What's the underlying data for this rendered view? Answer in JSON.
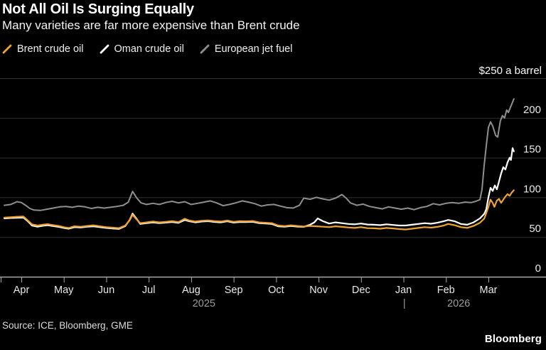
{
  "header": {
    "title": "Not All Oil Is Surging Equally",
    "subtitle": "Many varieties are far more expensive than Brent crude"
  },
  "legend": [
    {
      "label": "Brent crude oil",
      "color": "#eda233"
    },
    {
      "label": "Oman crude oil",
      "color": "#ffffff"
    },
    {
      "label": "European jet fuel",
      "color": "#8f8f8f"
    }
  ],
  "footer": {
    "source": "Source: ICE, Bloomberg, GME",
    "logo": "Bloomberg"
  },
  "chart_data": {
    "type": "line",
    "title": "Not All Oil Is Surging Equally",
    "subtitle": "Many varieties are far more expensive than Brent crude",
    "unit": "$ a barrel",
    "grid": true,
    "legend_position": "top-left",
    "y_axis": {
      "min": 0,
      "max": 250,
      "ticks": [
        0,
        50,
        100,
        150,
        200
      ],
      "grid_values": [
        50,
        100,
        150,
        200,
        250
      ],
      "top_label": "$250 a barrel"
    },
    "x_axis": {
      "unit": "months since Apr 2025 (0=Apr 2025 ... 11=Mar 2026)",
      "months": [
        "Apr",
        "May",
        "Jun",
        "Jul",
        "Aug",
        "Sep",
        "Oct",
        "Nov",
        "Dec",
        "Jan",
        "Feb",
        "Mar"
      ],
      "year_labels": [
        {
          "label": "2025",
          "pos": 4.3
        },
        {
          "label": "|",
          "pos": 9.02
        },
        {
          "label": "2026",
          "pos": 10.3
        }
      ]
    },
    "colors": {
      "axis": "#a9a9a9",
      "gridline": "#313131",
      "tick_text": "#e9e9e9",
      "year_text": "#9b9b9b"
    },
    "series": [
      {
        "name": "Brent crude oil",
        "color": "#eda233",
        "width": 2.2,
        "points": [
          [
            -0.4,
            74.5
          ],
          [
            -0.25,
            75
          ],
          [
            -0.1,
            75.5
          ],
          [
            0.05,
            75.8
          ],
          [
            0.15,
            71
          ],
          [
            0.25,
            66
          ],
          [
            0.38,
            64.5
          ],
          [
            0.5,
            65.5
          ],
          [
            0.62,
            66.2
          ],
          [
            0.75,
            65
          ],
          [
            0.88,
            64
          ],
          [
            1,
            62.5
          ],
          [
            1.12,
            61.5
          ],
          [
            1.25,
            63.5
          ],
          [
            1.4,
            63
          ],
          [
            1.55,
            64
          ],
          [
            1.7,
            64.8
          ],
          [
            1.85,
            63.5
          ],
          [
            2,
            62.5
          ],
          [
            2.15,
            61.8
          ],
          [
            2.3,
            61.2
          ],
          [
            2.45,
            64.5
          ],
          [
            2.55,
            71
          ],
          [
            2.62,
            78
          ],
          [
            2.7,
            73
          ],
          [
            2.8,
            67.5
          ],
          [
            2.95,
            68.5
          ],
          [
            3.1,
            69.5
          ],
          [
            3.25,
            68.5
          ],
          [
            3.4,
            69.2
          ],
          [
            3.55,
            70
          ],
          [
            3.7,
            68.8
          ],
          [
            3.85,
            73
          ],
          [
            3.95,
            71
          ],
          [
            4.1,
            69.5
          ],
          [
            4.25,
            70.5
          ],
          [
            4.4,
            71
          ],
          [
            4.55,
            70
          ],
          [
            4.7,
            69.5
          ],
          [
            4.85,
            70.8
          ],
          [
            5,
            69.2
          ],
          [
            5.15,
            70
          ],
          [
            5.3,
            69.8
          ],
          [
            5.45,
            70.2
          ],
          [
            5.6,
            68.5
          ],
          [
            5.75,
            68
          ],
          [
            5.9,
            67.5
          ],
          [
            6.05,
            64.5
          ],
          [
            6.2,
            63.8
          ],
          [
            6.35,
            64.8
          ],
          [
            6.5,
            64
          ],
          [
            6.65,
            63.2
          ],
          [
            6.8,
            64
          ],
          [
            6.95,
            63.5
          ],
          [
            7.1,
            63
          ],
          [
            7.25,
            62.5
          ],
          [
            7.4,
            63.5
          ],
          [
            7.55,
            62.8
          ],
          [
            7.7,
            62
          ],
          [
            7.85,
            61.5
          ],
          [
            8,
            62.5
          ],
          [
            8.15,
            61.2
          ],
          [
            8.3,
            61
          ],
          [
            8.45,
            60.5
          ],
          [
            8.6,
            61.5
          ],
          [
            8.75,
            60.8
          ],
          [
            8.9,
            60
          ],
          [
            9.05,
            59.5
          ],
          [
            9.2,
            60.5
          ],
          [
            9.35,
            61.5
          ],
          [
            9.5,
            62.5
          ],
          [
            9.65,
            61.8
          ],
          [
            9.8,
            62.8
          ],
          [
            9.95,
            64.5
          ],
          [
            10.05,
            66.5
          ],
          [
            10.2,
            65
          ],
          [
            10.35,
            62.5
          ],
          [
            10.5,
            61.5
          ],
          [
            10.65,
            64
          ],
          [
            10.8,
            68
          ],
          [
            10.9,
            73
          ],
          [
            10.95,
            80
          ],
          [
            11,
            88
          ],
          [
            11.05,
            97
          ],
          [
            11.1,
            93
          ],
          [
            11.14,
            88
          ],
          [
            11.2,
            96
          ],
          [
            11.25,
            98
          ],
          [
            11.3,
            93
          ],
          [
            11.35,
            97
          ],
          [
            11.4,
            101
          ],
          [
            11.45,
            104
          ],
          [
            11.5,
            102
          ],
          [
            11.55,
            106
          ],
          [
            11.6,
            109
          ]
        ]
      },
      {
        "name": "Oman crude oil",
        "color": "#ffffff",
        "width": 2.2,
        "points": [
          [
            -0.4,
            73.5
          ],
          [
            -0.25,
            74
          ],
          [
            -0.1,
            74.2
          ],
          [
            0.05,
            74.5
          ],
          [
            0.15,
            70
          ],
          [
            0.25,
            64.5
          ],
          [
            0.38,
            63
          ],
          [
            0.5,
            64.2
          ],
          [
            0.62,
            65
          ],
          [
            0.75,
            63.8
          ],
          [
            0.88,
            62.8
          ],
          [
            1,
            61.5
          ],
          [
            1.12,
            60.5
          ],
          [
            1.25,
            62.5
          ],
          [
            1.4,
            62
          ],
          [
            1.55,
            63
          ],
          [
            1.7,
            63.5
          ],
          [
            1.85,
            62.5
          ],
          [
            2,
            61.5
          ],
          [
            2.15,
            60.8
          ],
          [
            2.3,
            60.2
          ],
          [
            2.45,
            63.8
          ],
          [
            2.55,
            71.5
          ],
          [
            2.62,
            79.5
          ],
          [
            2.7,
            74
          ],
          [
            2.8,
            66.5
          ],
          [
            2.95,
            67.5
          ],
          [
            3.1,
            68.5
          ],
          [
            3.25,
            67.5
          ],
          [
            3.4,
            68.2
          ],
          [
            3.55,
            69
          ],
          [
            3.7,
            67.8
          ],
          [
            3.85,
            71.5
          ],
          [
            3.95,
            70
          ],
          [
            4.1,
            68.5
          ],
          [
            4.25,
            69.5
          ],
          [
            4.4,
            70
          ],
          [
            4.55,
            69
          ],
          [
            4.7,
            68.5
          ],
          [
            4.85,
            69.8
          ],
          [
            5,
            68.2
          ],
          [
            5.15,
            69
          ],
          [
            5.3,
            68.8
          ],
          [
            5.45,
            69.2
          ],
          [
            5.6,
            67.5
          ],
          [
            5.75,
            67
          ],
          [
            5.9,
            66.5
          ],
          [
            6.05,
            63.5
          ],
          [
            6.2,
            63
          ],
          [
            6.35,
            64
          ],
          [
            6.5,
            63.2
          ],
          [
            6.65,
            62.8
          ],
          [
            6.8,
            65.5
          ],
          [
            6.9,
            68.5
          ],
          [
            6.98,
            73.5
          ],
          [
            7.1,
            70
          ],
          [
            7.25,
            67
          ],
          [
            7.4,
            68.5
          ],
          [
            7.55,
            67.5
          ],
          [
            7.7,
            66.5
          ],
          [
            7.85,
            66
          ],
          [
            8,
            67
          ],
          [
            8.15,
            65.8
          ],
          [
            8.3,
            65.5
          ],
          [
            8.45,
            65
          ],
          [
            8.6,
            66
          ],
          [
            8.75,
            65.2
          ],
          [
            8.9,
            64.5
          ],
          [
            9.05,
            64.5
          ],
          [
            9.2,
            65.5
          ],
          [
            9.35,
            66.5
          ],
          [
            9.5,
            67.5
          ],
          [
            9.65,
            66.8
          ],
          [
            9.8,
            68
          ],
          [
            9.95,
            70
          ],
          [
            10.05,
            71.5
          ],
          [
            10.2,
            70
          ],
          [
            10.35,
            66.5
          ],
          [
            10.5,
            65.5
          ],
          [
            10.65,
            68.5
          ],
          [
            10.8,
            73.5
          ],
          [
            10.9,
            79
          ],
          [
            10.95,
            85
          ],
          [
            11,
            100
          ],
          [
            11.05,
            112
          ],
          [
            11.1,
            108
          ],
          [
            11.15,
            115
          ],
          [
            11.2,
            110
          ],
          [
            11.25,
            120
          ],
          [
            11.3,
            130
          ],
          [
            11.35,
            138
          ],
          [
            11.4,
            135
          ],
          [
            11.45,
            144
          ],
          [
            11.5,
            150
          ],
          [
            11.53,
            147
          ],
          [
            11.57,
            162
          ],
          [
            11.6,
            158
          ]
        ]
      },
      {
        "name": "European jet fuel",
        "color": "#8f8f8f",
        "width": 2,
        "points": [
          [
            -0.4,
            90
          ],
          [
            -0.25,
            91
          ],
          [
            -0.1,
            94.5
          ],
          [
            0,
            93.5
          ],
          [
            0.1,
            90
          ],
          [
            0.2,
            86
          ],
          [
            0.3,
            84
          ],
          [
            0.45,
            83.5
          ],
          [
            0.6,
            85
          ],
          [
            0.75,
            86.5
          ],
          [
            0.9,
            88
          ],
          [
            1.05,
            88.5
          ],
          [
            1.2,
            87.5
          ],
          [
            1.35,
            89
          ],
          [
            1.5,
            88
          ],
          [
            1.65,
            86
          ],
          [
            1.8,
            87.5
          ],
          [
            1.95,
            86.5
          ],
          [
            2.1,
            87.5
          ],
          [
            2.25,
            88.5
          ],
          [
            2.4,
            90
          ],
          [
            2.52,
            94
          ],
          [
            2.62,
            107.5
          ],
          [
            2.72,
            99
          ],
          [
            2.82,
            93
          ],
          [
            2.95,
            91
          ],
          [
            3.1,
            92.5
          ],
          [
            3.25,
            91
          ],
          [
            3.4,
            93.5
          ],
          [
            3.55,
            95
          ],
          [
            3.7,
            93
          ],
          [
            3.85,
            94.5
          ],
          [
            4,
            91
          ],
          [
            4.15,
            92.5
          ],
          [
            4.3,
            94
          ],
          [
            4.45,
            95.5
          ],
          [
            4.6,
            93
          ],
          [
            4.75,
            89.5
          ],
          [
            4.9,
            91
          ],
          [
            5.05,
            93
          ],
          [
            5.2,
            95.5
          ],
          [
            5.35,
            94
          ],
          [
            5.5,
            92
          ],
          [
            5.65,
            89
          ],
          [
            5.8,
            90.5
          ],
          [
            5.95,
            91
          ],
          [
            6.1,
            89
          ],
          [
            6.25,
            87
          ],
          [
            6.4,
            86.5
          ],
          [
            6.55,
            90
          ],
          [
            6.65,
            99
          ],
          [
            6.8,
            97.5
          ],
          [
            6.95,
            100
          ],
          [
            7.1,
            98
          ],
          [
            7.25,
            96.5
          ],
          [
            7.4,
            99
          ],
          [
            7.55,
            103.5
          ],
          [
            7.65,
            99
          ],
          [
            7.75,
            93
          ],
          [
            7.9,
            90
          ],
          [
            8.05,
            91.5
          ],
          [
            8.2,
            88.5
          ],
          [
            8.35,
            87
          ],
          [
            8.5,
            85.5
          ],
          [
            8.65,
            88
          ],
          [
            8.8,
            86.5
          ],
          [
            8.95,
            85
          ],
          [
            9.1,
            86.5
          ],
          [
            9.25,
            84.5
          ],
          [
            9.4,
            87
          ],
          [
            9.55,
            88.5
          ],
          [
            9.7,
            92
          ],
          [
            9.85,
            90.5
          ],
          [
            10,
            92.5
          ],
          [
            10.15,
            93.5
          ],
          [
            10.3,
            92.5
          ],
          [
            10.45,
            94
          ],
          [
            10.6,
            93.5
          ],
          [
            10.7,
            95
          ],
          [
            10.8,
            97
          ],
          [
            10.85,
            110
          ],
          [
            10.9,
            140
          ],
          [
            10.95,
            165
          ],
          [
            11,
            188
          ],
          [
            11.05,
            195
          ],
          [
            11.1,
            190
          ],
          [
            11.17,
            178
          ],
          [
            11.22,
            176
          ],
          [
            11.28,
            196
          ],
          [
            11.33,
            203
          ],
          [
            11.38,
            200
          ],
          [
            11.43,
            210
          ],
          [
            11.47,
            207
          ],
          [
            11.53,
            215
          ],
          [
            11.6,
            224
          ]
        ]
      }
    ]
  }
}
